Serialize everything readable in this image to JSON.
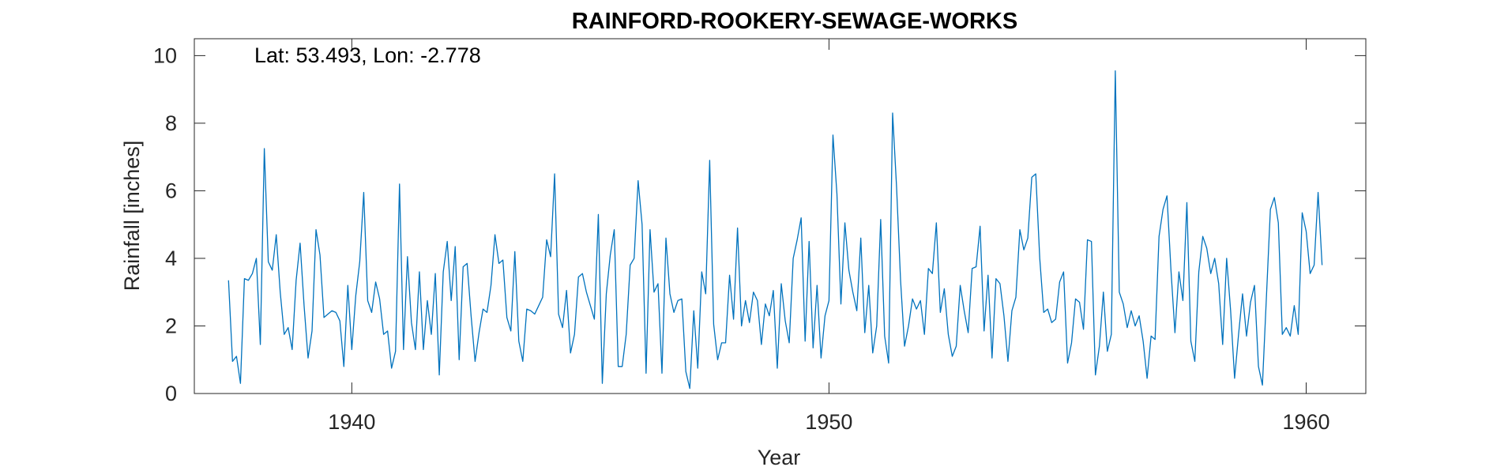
{
  "chart_data": {
    "type": "line",
    "title": "RAINFORD-ROOKERY-SEWAGE-WORKS",
    "xlabel": "Year",
    "ylabel": "Rainfall [inches]",
    "annotation": "Lat: 53.493, Lon: -2.778",
    "xlim": [
      1936.7,
      1961.25
    ],
    "ylim": [
      0,
      10.5
    ],
    "xticks": [
      1940,
      1950,
      1960
    ],
    "xtick_labels": [
      "1940",
      "1950",
      "1960"
    ],
    "yticks": [
      0,
      2,
      4,
      6,
      8,
      10
    ],
    "ytick_labels": [
      "0",
      "2",
      "4",
      "6",
      "8",
      "10"
    ],
    "grid": false,
    "series": [
      {
        "color": "#0072BD",
        "start_year": 1937,
        "start_month": 6,
        "values": [
          3.35,
          0.95,
          1.1,
          0.3,
          3.4,
          3.35,
          3.55,
          4.0,
          1.45,
          7.25,
          3.9,
          3.65,
          4.7,
          3.0,
          1.75,
          1.95,
          1.3,
          3.35,
          4.45,
          2.6,
          1.05,
          1.85,
          4.85,
          4.1,
          2.25,
          2.35,
          2.45,
          2.4,
          2.15,
          0.8,
          3.2,
          1.3,
          2.9,
          3.9,
          5.95,
          2.75,
          2.4,
          3.3,
          2.8,
          1.75,
          1.85,
          0.75,
          1.25,
          6.2,
          1.3,
          4.05,
          2.1,
          1.3,
          3.6,
          1.3,
          2.75,
          1.75,
          3.55,
          0.55,
          3.6,
          4.5,
          2.75,
          4.35,
          1.0,
          3.75,
          3.85,
          2.3,
          0.95,
          1.8,
          2.5,
          2.4,
          3.2,
          4.7,
          3.85,
          3.95,
          2.25,
          1.85,
          4.2,
          1.55,
          0.95,
          2.5,
          2.45,
          2.35,
          2.6,
          2.85,
          4.55,
          4.05,
          6.5,
          2.35,
          1.95,
          3.05,
          1.2,
          1.75,
          3.45,
          3.55,
          3.0,
          2.6,
          2.2,
          5.3,
          0.3,
          2.95,
          4.1,
          4.85,
          0.8,
          0.8,
          1.75,
          3.8,
          4.0,
          6.3,
          5.0,
          0.6,
          4.85,
          3.0,
          3.25,
          0.6,
          4.6,
          2.95,
          2.4,
          2.75,
          2.8,
          0.65,
          0.15,
          2.45,
          0.75,
          3.6,
          2.95,
          6.9,
          2.05,
          1.0,
          1.5,
          1.5,
          3.5,
          2.2,
          4.9,
          2.0,
          2.75,
          2.1,
          3.0,
          2.75,
          1.45,
          2.65,
          2.3,
          3.05,
          0.75,
          3.25,
          2.15,
          1.5,
          4.0,
          4.55,
          5.2,
          1.55,
          4.5,
          1.35,
          3.2,
          1.05,
          2.3,
          2.75,
          7.65,
          5.9,
          2.65,
          5.05,
          3.65,
          3.0,
          2.45,
          4.6,
          1.8,
          3.2,
          1.2,
          2.0,
          5.15,
          1.7,
          0.9,
          8.3,
          6.1,
          3.35,
          1.4,
          2.0,
          2.8,
          2.5,
          2.75,
          1.75,
          3.7,
          3.55,
          5.05,
          2.4,
          3.1,
          1.75,
          1.1,
          1.4,
          3.2,
          2.45,
          1.8,
          3.7,
          3.75,
          4.95,
          1.85,
          3.5,
          1.05,
          3.4,
          3.25,
          2.3,
          0.95,
          2.45,
          2.85,
          4.85,
          4.25,
          4.6,
          6.4,
          6.5,
          4.0,
          2.4,
          2.5,
          2.1,
          2.2,
          3.3,
          3.6,
          0.9,
          1.5,
          2.8,
          2.7,
          1.9,
          4.55,
          4.5,
          0.55,
          1.4,
          3.0,
          1.25,
          1.75,
          9.55,
          3.0,
          2.65,
          1.95,
          2.45,
          2.0,
          2.3,
          1.55,
          0.45,
          1.7,
          1.6,
          4.65,
          5.45,
          5.85,
          3.65,
          1.8,
          3.6,
          2.75,
          5.65,
          1.55,
          0.95,
          3.6,
          4.65,
          4.3,
          3.55,
          4.0,
          3.25,
          1.45,
          4.0,
          2.45,
          0.45,
          1.75,
          2.95,
          1.7,
          2.7,
          3.2,
          0.8,
          0.25,
          2.85,
          5.45,
          5.8,
          5.05,
          1.75,
          1.95,
          1.7,
          2.6,
          1.75,
          5.35,
          4.8,
          3.55,
          3.8,
          5.95,
          3.8
        ]
      }
    ]
  }
}
